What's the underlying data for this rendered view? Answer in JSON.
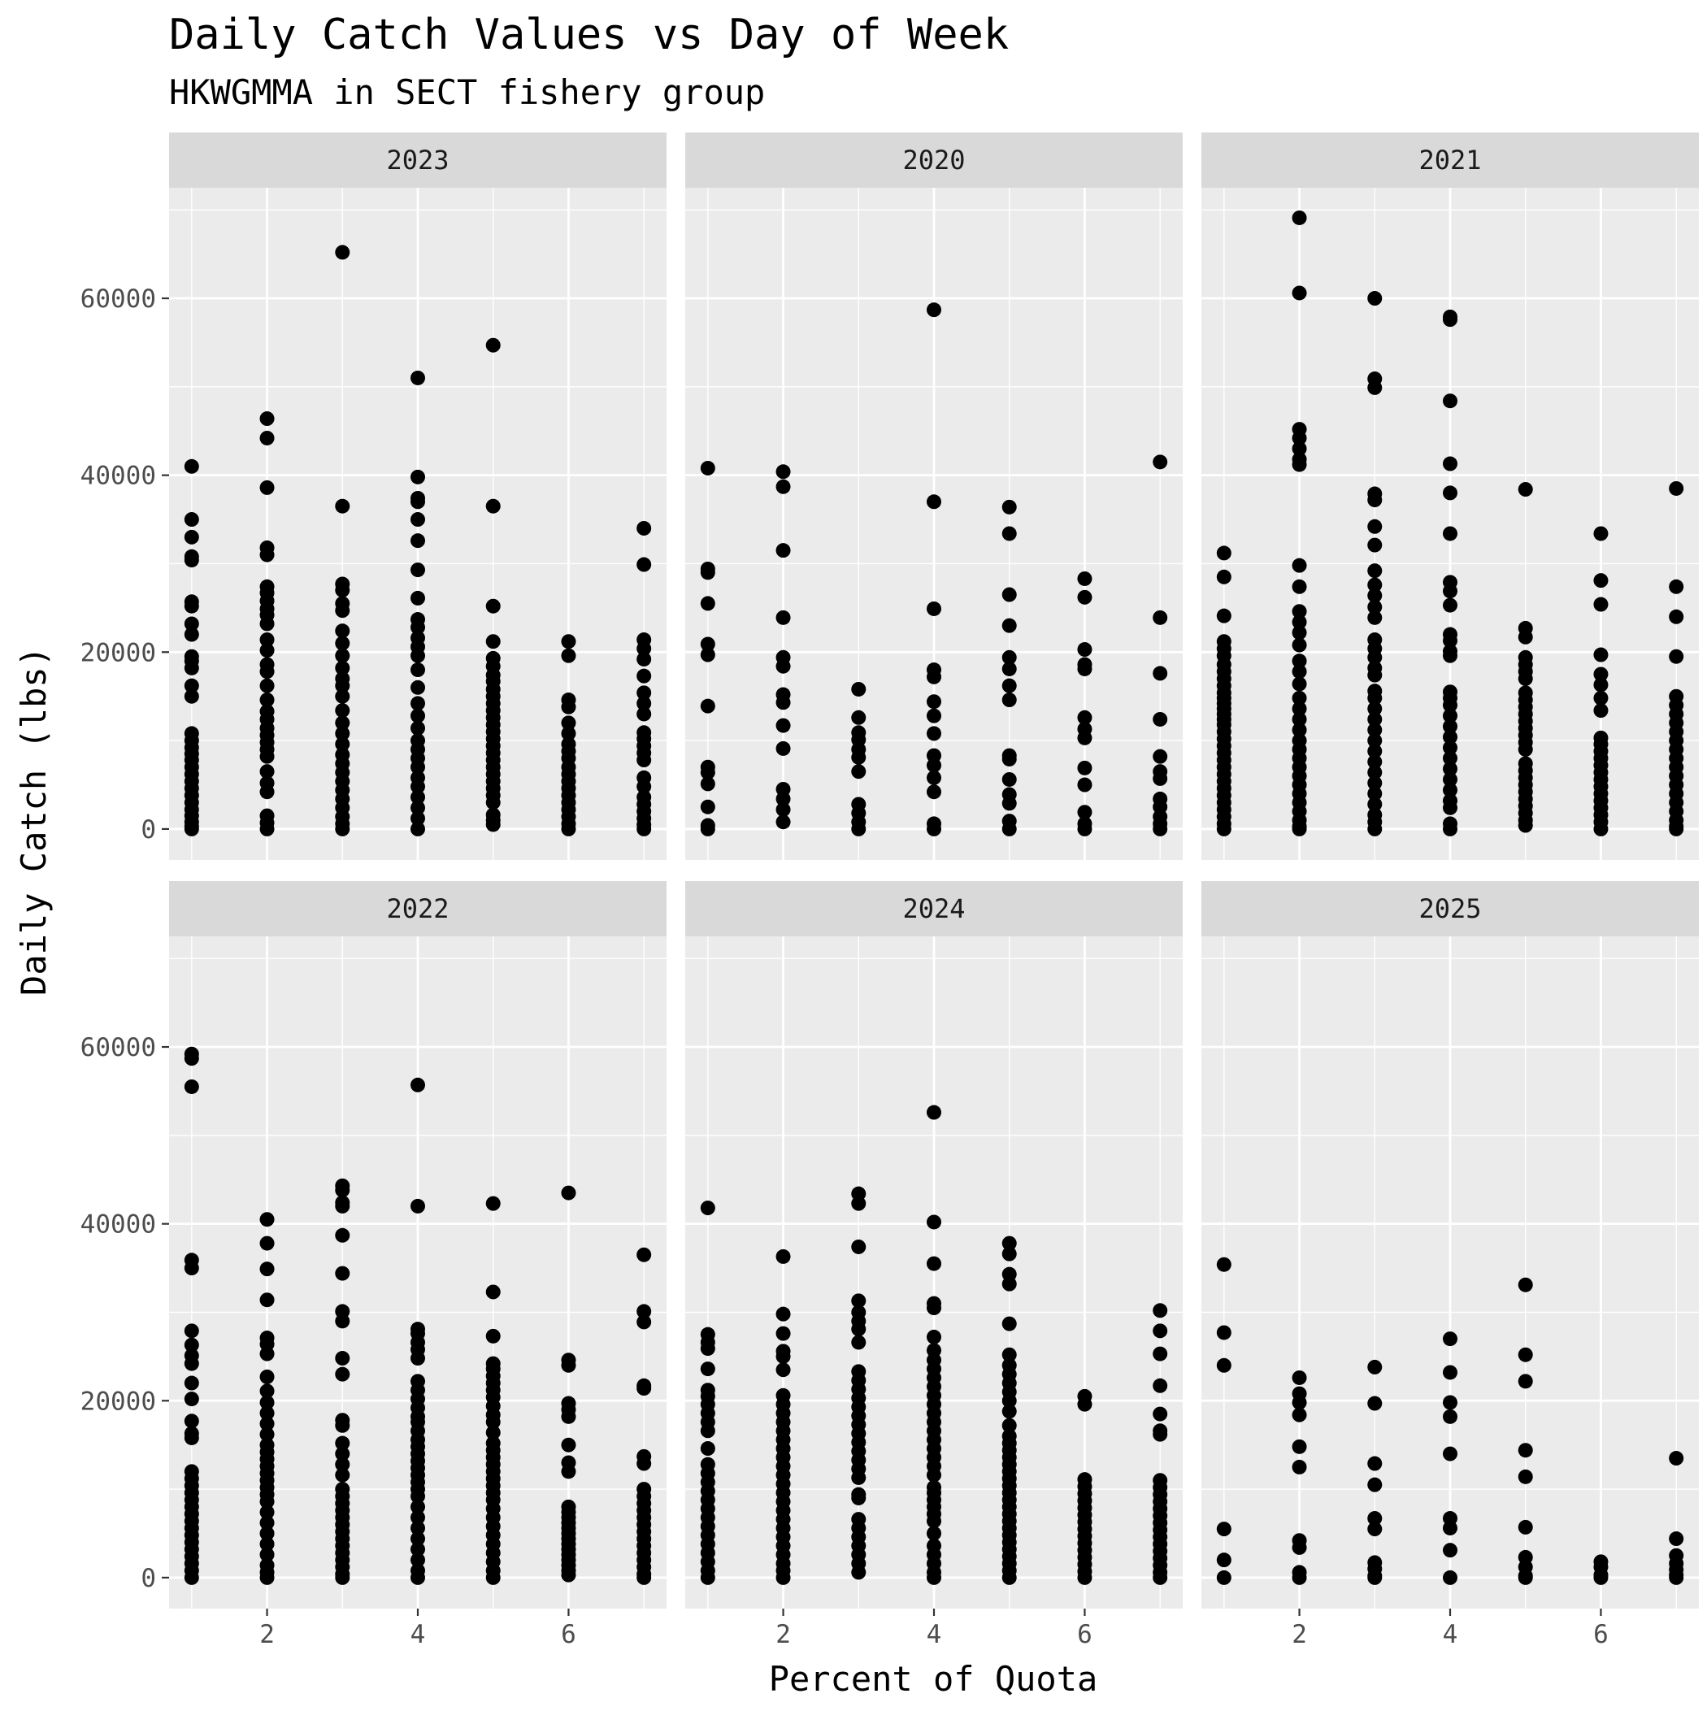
{
  "chart_data": {
    "type": "scatter",
    "title": "Daily Catch Values vs Day of Week",
    "subtitle": "HKWGMMA in SECT fishery group",
    "xlabel": "Percent of Quota",
    "ylabel": "Daily Catch (lbs)",
    "xlim": [
      0.7,
      7.3
    ],
    "ylim": [
      -3500,
      72500
    ],
    "x_ticks": [
      2,
      4,
      6
    ],
    "y_ticks": [
      0,
      20000,
      40000,
      60000
    ],
    "x_tick_labels": [
      "2",
      "4",
      "6"
    ],
    "y_tick_labels": [
      "0",
      "20000",
      "40000",
      "60000"
    ],
    "grid": true,
    "legend": "none",
    "point_color": "#000000",
    "panel_background": "#ebebeb",
    "strip_background": "#d9d9d9",
    "panels": [
      {
        "label": "2023",
        "points": {
          "1": [
            41000,
            35000,
            33000,
            30800,
            30400,
            25700,
            25200,
            23200,
            22000,
            19500,
            19000,
            18200,
            16200,
            15000,
            10800,
            10000,
            9200,
            8500,
            7800,
            7000,
            6200,
            5400,
            4600,
            3800,
            3000,
            2200,
            1500,
            800,
            300,
            0
          ],
          "2": [
            46400,
            44200,
            38600,
            31800,
            31000,
            27400,
            26700,
            25800,
            24900,
            24200,
            23200,
            21400,
            20200,
            18600,
            17800,
            16200,
            14600,
            13300,
            12400,
            11400,
            10600,
            9800,
            9000,
            8200,
            6500,
            5200,
            4200,
            1500,
            700,
            0
          ],
          "3": [
            65200,
            36500,
            27700,
            27000,
            25500,
            24700,
            22400,
            21000,
            19600,
            18200,
            17000,
            16200,
            15000,
            13400,
            12000,
            10800,
            9600,
            8400,
            7400,
            6400,
            5400,
            4400,
            3400,
            2400,
            1400,
            600,
            0
          ],
          "4": [
            51000,
            39800,
            37400,
            37000,
            35000,
            32600,
            29300,
            26100,
            23700,
            22800,
            21600,
            20600,
            19600,
            18000,
            16000,
            14200,
            12800,
            11400,
            10000,
            9000,
            8000,
            7000,
            5800,
            4800,
            3600,
            2400,
            1200,
            0
          ],
          "5": [
            54700,
            36500,
            25200,
            21200,
            19300,
            18400,
            17400,
            16700,
            15800,
            15000,
            14200,
            13400,
            12600,
            11800,
            11000,
            10200,
            9400,
            8600,
            7800,
            7000,
            6200,
            5400,
            4600,
            3800,
            3000,
            1600,
            1000,
            500
          ],
          "6": [
            21200,
            19600,
            14600,
            13800,
            12000,
            10800,
            9600,
            8800,
            8000,
            7000,
            6200,
            5400,
            4600,
            3800,
            3000,
            2200,
            1400,
            600,
            0
          ],
          "7": [
            34000,
            29900,
            21400,
            20400,
            19200,
            17300,
            15400,
            14200,
            13000,
            10900,
            10200,
            9400,
            8600,
            7800,
            5800,
            4800,
            3600,
            2800,
            2000,
            1200,
            500,
            0
          ]
        }
      },
      {
        "label": "2020",
        "points": {
          "1": [
            40800,
            29400,
            29000,
            25500,
            20900,
            19700,
            13900,
            7000,
            6400,
            5100,
            2500,
            400,
            0
          ],
          "2": [
            40400,
            38700,
            31500,
            23900,
            19400,
            18400,
            15200,
            14300,
            11700,
            9100,
            4500,
            3400,
            2200,
            800
          ],
          "3": [
            15800,
            12600,
            10900,
            10100,
            9000,
            8100,
            6500,
            2800,
            1800,
            800,
            0
          ],
          "4": [
            58700,
            37000,
            24900,
            18000,
            17200,
            14400,
            12800,
            10800,
            8300,
            7200,
            5800,
            4200,
            600,
            0
          ],
          "5": [
            36400,
            33400,
            26500,
            23000,
            19400,
            18100,
            16200,
            14600,
            8300,
            7900,
            5600,
            3900,
            2900,
            900,
            0
          ],
          "6": [
            28300,
            26200,
            20300,
            18600,
            18100,
            12600,
            11300,
            10300,
            6900,
            5000,
            1900,
            600,
            0
          ],
          "7": [
            41500,
            23900,
            17600,
            12400,
            8200,
            6500,
            5700,
            3400,
            2500,
            1400,
            600,
            0
          ]
        }
      },
      {
        "label": "2021",
        "points": {
          "1": [
            31200,
            28500,
            24100,
            21200,
            20400,
            19600,
            18600,
            17800,
            17000,
            16200,
            15400,
            14800,
            14200,
            13600,
            13000,
            12400,
            11800,
            11000,
            10200,
            9400,
            8600,
            7800,
            7000,
            6200,
            5400,
            4600,
            3800,
            3000,
            2200,
            1400,
            600,
            0
          ],
          "2": [
            69100,
            60600,
            45200,
            44200,
            43000,
            41800,
            41200,
            29800,
            27400,
            24600,
            23400,
            22200,
            20800,
            19000,
            17800,
            16400,
            14800,
            13600,
            12400,
            11200,
            10000,
            9000,
            8000,
            7000,
            6000,
            5000,
            4000,
            3000,
            2000,
            1000,
            300,
            0
          ],
          "3": [
            60000,
            50900,
            49900,
            37900,
            37200,
            34200,
            32100,
            29200,
            27600,
            26400,
            25100,
            23900,
            21400,
            20400,
            19400,
            18200,
            17400,
            15600,
            14800,
            13600,
            12400,
            11200,
            10000,
            8800,
            7600,
            6400,
            5200,
            4000,
            2800,
            1600,
            800,
            0
          ],
          "4": [
            57900,
            57600,
            48400,
            41300,
            38000,
            33400,
            27900,
            26900,
            25300,
            22000,
            21300,
            20100,
            19600,
            15500,
            14800,
            14000,
            12800,
            11600,
            10400,
            9200,
            8000,
            6800,
            5600,
            4400,
            3200,
            2400,
            600,
            0
          ],
          "5": [
            38400,
            22700,
            21700,
            19400,
            18600,
            17800,
            17000,
            15400,
            14600,
            13800,
            13000,
            12200,
            11400,
            10600,
            9800,
            9000,
            7400,
            6600,
            5800,
            5000,
            4200,
            3400,
            2600,
            1800,
            1000,
            400
          ],
          "6": [
            33400,
            28100,
            25400,
            19700,
            17500,
            16300,
            14800,
            13400,
            10300,
            9600,
            8800,
            8000,
            7200,
            6400,
            5600,
            4800,
            4000,
            3200,
            2400,
            1600,
            800,
            0
          ],
          "7": [
            38500,
            27400,
            24000,
            19500,
            15000,
            14000,
            13000,
            12000,
            11000,
            10000,
            9000,
            8000,
            7000,
            6000,
            5000,
            4000,
            3000,
            2000,
            1000,
            300,
            0
          ]
        }
      },
      {
        "label": "2022",
        "points": {
          "1": [
            59200,
            58700,
            55500,
            35900,
            35000,
            27900,
            26300,
            25100,
            24200,
            22000,
            20200,
            17700,
            16300,
            15800,
            12000,
            11200,
            10400,
            9600,
            8800,
            8000,
            7200,
            6400,
            5600,
            4800,
            4000,
            3200,
            2400,
            1600,
            800,
            0
          ],
          "2": [
            40500,
            37800,
            34900,
            31400,
            27100,
            26400,
            25300,
            22700,
            21100,
            19800,
            18600,
            17400,
            16200,
            15000,
            14200,
            13400,
            12600,
            11800,
            11000,
            10200,
            9400,
            8600,
            7400,
            6200,
            5000,
            3800,
            2600,
            1400,
            600,
            0
          ],
          "3": [
            44300,
            43800,
            42400,
            42000,
            38700,
            34400,
            30100,
            29000,
            24800,
            23000,
            17800,
            17200,
            15200,
            14000,
            12800,
            11600,
            10000,
            9200,
            8400,
            7600,
            6800,
            6000,
            5200,
            4400,
            3600,
            2800,
            2000,
            1200,
            400,
            0
          ],
          "4": [
            55700,
            42000,
            28100,
            27600,
            26600,
            25800,
            24800,
            22200,
            21200,
            20200,
            19200,
            18200,
            17600,
            16600,
            15600,
            14800,
            14000,
            13200,
            12400,
            11600,
            10800,
            10000,
            9200,
            8000,
            6800,
            5600,
            4400,
            3200,
            2000,
            800,
            0
          ],
          "5": [
            42300,
            32300,
            27300,
            24200,
            23600,
            22800,
            22000,
            21200,
            20400,
            19400,
            18400,
            17600,
            16400,
            15200,
            14400,
            13600,
            12800,
            12000,
            11200,
            10400,
            9600,
            8800,
            7800,
            6800,
            5800,
            4800,
            3800,
            2800,
            1800,
            800,
            0
          ],
          "6": [
            43500,
            24600,
            24000,
            19700,
            19000,
            18200,
            15000,
            13000,
            12000,
            8000,
            7400,
            6800,
            6200,
            5600,
            5000,
            4400,
            3800,
            3200,
            2600,
            2000,
            1400,
            800,
            300
          ],
          "7": [
            36500,
            30100,
            28900,
            21700,
            21400,
            13700,
            12900,
            10000,
            9200,
            8400,
            7600,
            6800,
            6000,
            5200,
            4400,
            3600,
            2800,
            2000,
            1200,
            400,
            0
          ]
        }
      },
      {
        "label": "2024",
        "points": {
          "1": [
            41800,
            27500,
            26600,
            25900,
            23600,
            21200,
            20500,
            19600,
            18600,
            17600,
            16600,
            14600,
            12800,
            11800,
            10800,
            9800,
            8800,
            7800,
            6800,
            5800,
            4800,
            3800,
            2800,
            1800,
            800,
            0
          ],
          "2": [
            36300,
            29800,
            27600,
            25600,
            25000,
            23500,
            20600,
            19600,
            18600,
            17600,
            16600,
            15600,
            14600,
            13600,
            12600,
            11600,
            10600,
            9600,
            8600,
            7600,
            6600,
            5600,
            4600,
            3600,
            2600,
            1600,
            800,
            0
          ],
          "3": [
            43400,
            42300,
            37400,
            31300,
            30000,
            29000,
            28100,
            26600,
            23300,
            22300,
            21300,
            20300,
            19300,
            18300,
            17300,
            16300,
            15300,
            14300,
            13300,
            12300,
            11300,
            9400,
            9000,
            6600,
            5600,
            4600,
            3600,
            2600,
            1600,
            600
          ],
          "4": [
            52600,
            40200,
            35500,
            31000,
            30500,
            27200,
            25700,
            24600,
            23600,
            22600,
            21600,
            20600,
            19600,
            18600,
            17600,
            16600,
            15600,
            14600,
            13600,
            12600,
            11600,
            10200,
            9600,
            8800,
            8000,
            7200,
            6400,
            5000,
            3600,
            2600,
            1600,
            600,
            0
          ],
          "5": [
            37800,
            36600,
            34300,
            33200,
            28700,
            25200,
            24000,
            23000,
            22000,
            21000,
            20000,
            18800,
            17200,
            16000,
            15200,
            14400,
            13600,
            12800,
            12000,
            11200,
            10400,
            9600,
            8800,
            8000,
            7200,
            6400,
            5600,
            4800,
            4000,
            3200,
            2400,
            1600,
            800,
            0
          ],
          "6": [
            20500,
            19600,
            11100,
            10300,
            9500,
            8700,
            7900,
            7100,
            6300,
            5500,
            4700,
            3900,
            3100,
            2300,
            1500,
            700,
            0
          ],
          "7": [
            30200,
            27900,
            25300,
            21700,
            18500,
            16600,
            16200,
            11000,
            10200,
            9400,
            8600,
            7800,
            7000,
            6200,
            5400,
            4600,
            3800,
            3000,
            2200,
            1400,
            600,
            0
          ]
        }
      },
      {
        "label": "2025",
        "points": {
          "1": [
            35400,
            27700,
            24000,
            5500,
            2000,
            0
          ],
          "2": [
            22600,
            20800,
            19800,
            18400,
            14800,
            12500,
            4200,
            3400,
            600,
            0
          ],
          "3": [
            23800,
            19700,
            12900,
            10500,
            6700,
            5500,
            1700,
            1000,
            200,
            0
          ],
          "4": [
            27000,
            23200,
            19800,
            18200,
            14000,
            6700,
            5600,
            3100,
            0
          ],
          "5": [
            33100,
            25200,
            22200,
            14400,
            11400,
            5700,
            2300,
            1200,
            200,
            0
          ],
          "6": [
            1800,
            1200,
            300,
            0
          ],
          "7": [
            13500,
            4400,
            2500,
            1600,
            900,
            300,
            0
          ]
        }
      }
    ]
  }
}
